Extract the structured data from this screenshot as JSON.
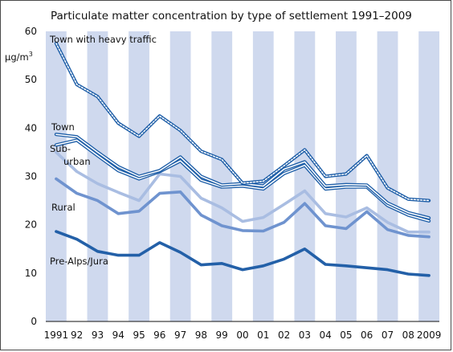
{
  "chart_data": {
    "type": "line",
    "title": "Particulate matter concentration by type of settlement 1991–2009",
    "ylabel_main": "μg/m",
    "ylabel_sup": "3",
    "xlabel": "",
    "ylim": [
      0,
      60
    ],
    "yticks": [
      "0",
      "10",
      "20",
      "30",
      "40",
      "50",
      "60"
    ],
    "categories": [
      "1991",
      "92",
      "93",
      "94",
      "95",
      "96",
      "97",
      "98",
      "99",
      "00",
      "01",
      "02",
      "03",
      "04",
      "05",
      "06",
      "07",
      "08",
      "2009"
    ],
    "grid": "alternating vertical bands",
    "series": [
      {
        "name": "Town with heavy traffic",
        "style": "double-dotted",
        "color": "#1f5fa8",
        "values": [
          57.5,
          49,
          46.5,
          41,
          38.3,
          42.5,
          39.5,
          35.2,
          33.5,
          28.6,
          29,
          32.2,
          35.5,
          30,
          30.5,
          34.3,
          27.6,
          25.3,
          25
        ]
      },
      {
        "name": "Town",
        "style": "double",
        "color": "#1f5fa8",
        "values": [
          38.7,
          38.2,
          35,
          32,
          30,
          31.2,
          34,
          30,
          28.2,
          28.5,
          28,
          31.5,
          33,
          28,
          28.3,
          28.2,
          24.5,
          22.5,
          21.4
        ]
      },
      {
        "name": "Sub-urban",
        "style": "double",
        "color": "#1f5fa8",
        "values": [
          36.5,
          37.5,
          34.3,
          31.2,
          29.5,
          31,
          33.2,
          29.2,
          27.8,
          28,
          27.4,
          30.6,
          32.3,
          27.4,
          27.8,
          27.8,
          24,
          22,
          20.8
        ]
      },
      {
        "name": "Rural",
        "style": "solid",
        "color": "#a9bde2",
        "values": [
          35,
          31,
          28.5,
          26.7,
          25,
          30.5,
          30,
          25.5,
          23.5,
          20.7,
          21.5,
          24.2,
          27,
          22.3,
          21.6,
          23.5,
          20.5,
          18.5,
          18.5
        ]
      },
      {
        "name": "",
        "style": "solid",
        "color": "#6f93cf",
        "values": [
          29.5,
          26.5,
          25,
          22.3,
          22.8,
          26.5,
          26.8,
          22,
          19.8,
          18.8,
          18.7,
          20.5,
          24.4,
          19.8,
          19.2,
          22.7,
          19,
          17.8,
          17.5
        ]
      },
      {
        "name": "Pre-Alps/Jura",
        "style": "solid",
        "color": "#2360a8",
        "values": [
          18.6,
          17,
          14.5,
          13.7,
          13.7,
          16.3,
          14.3,
          11.7,
          12,
          10.7,
          11.5,
          12.9,
          15,
          11.8,
          11.5,
          11.1,
          10.7,
          9.8,
          9.5
        ]
      }
    ],
    "series_labels": [
      {
        "text": "Town with heavy traffic"
      },
      {
        "text": "Town"
      },
      {
        "text": "Sub-"
      },
      {
        "text": "urban"
      },
      {
        "text": "Rural"
      },
      {
        "text": "Pre-Alps/Jura"
      }
    ],
    "colors": {
      "band": "#cfd9ee",
      "dark": "#1f5fa8",
      "light": "#a9bde2",
      "mid": "#6f93cf"
    }
  }
}
